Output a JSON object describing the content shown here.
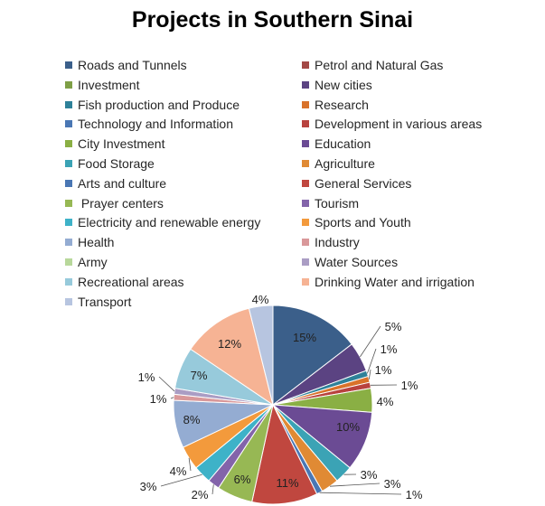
{
  "chart_data": {
    "type": "pie",
    "title": "Projects in Southern Sinai",
    "legend_placement": "top",
    "slices": [
      {
        "name": "Roads and Tunnels",
        "value": 15,
        "label": "15%",
        "color": "#3b5f8a"
      },
      {
        "name": "New cities",
        "value": 5,
        "label": "5%",
        "color": "#5b4382"
      },
      {
        "name": "Fish production and Produce",
        "value": 1,
        "label": "1%",
        "color": "#2e8199"
      },
      {
        "name": "Research",
        "value": 1,
        "label": "1%",
        "color": "#d9722a"
      },
      {
        "name": "Development in various areas",
        "value": 1,
        "label": "1%",
        "color": "#b8423e"
      },
      {
        "name": "City Investment",
        "value": 4,
        "label": "4%",
        "color": "#8aaf44"
      },
      {
        "name": "Education",
        "value": 10,
        "label": "10%",
        "color": "#6b4b94"
      },
      {
        "name": "Food Storage",
        "value": 3,
        "label": "3%",
        "color": "#3ba3b5"
      },
      {
        "name": "Agriculture",
        "value": 3,
        "label": "3%",
        "color": "#e08a34"
      },
      {
        "name": "Arts and culture",
        "value": 1,
        "label": "1%",
        "color": "#4a77b4"
      },
      {
        "name": "General Services",
        "value": 11,
        "label": "11%",
        "color": "#c0473f"
      },
      {
        "name": "Prayer centers",
        "value": 6,
        "label": "6%",
        "color": "#97b854"
      },
      {
        "name": "Tourism",
        "value": 2,
        "label": "2%",
        "color": "#8364aa"
      },
      {
        "name": "Electricity and renewable energy",
        "value": 3,
        "label": "3%",
        "color": "#3eb2c8"
      },
      {
        "name": "Sports and Youth",
        "value": 4,
        "label": "4%",
        "color": "#f39a3c"
      },
      {
        "name": "Health",
        "value": 8,
        "label": "8%",
        "color": "#94acd2"
      },
      {
        "name": "Industry",
        "value": 1,
        "label": "1%",
        "color": "#d9989a"
      },
      {
        "name": "Water Sources",
        "value": 1,
        "label": "1%",
        "color": "#aa9dc4"
      },
      {
        "name": "Recreational areas",
        "value": 7,
        "label": "7%",
        "color": "#97cadb"
      },
      {
        "name": "Drinking Water and irrigation",
        "value": 12,
        "label": "12%",
        "color": "#f6b394"
      },
      {
        "name": "Transport",
        "value": 4,
        "label": "4%",
        "color": "#b7c5e0"
      }
    ],
    "legend": [
      {
        "name": "Roads and Tunnels",
        "color": "#3b5f8a"
      },
      {
        "name": "Petrol and Natural Gas",
        "color": "#a34845"
      },
      {
        "name": "Investment",
        "color": "#7e9f46"
      },
      {
        "name": "New cities",
        "color": "#5b4382"
      },
      {
        "name": "Fish production and Produce",
        "color": "#2e8199"
      },
      {
        "name": "Research",
        "color": "#d9722a"
      },
      {
        "name": "Technology and Information",
        "color": "#4a77b4"
      },
      {
        "name": "Development in various areas",
        "color": "#b8423e"
      },
      {
        "name": "City Investment",
        "color": "#8aaf44"
      },
      {
        "name": "Education",
        "color": "#6b4b94"
      },
      {
        "name": "Food Storage",
        "color": "#3ba3b5"
      },
      {
        "name": "Agriculture",
        "color": "#e08a34"
      },
      {
        "name": "Arts and culture",
        "color": "#4a77b4"
      },
      {
        "name": "General Services",
        "color": "#c0473f"
      },
      {
        "name": " Prayer centers",
        "color": "#97b854"
      },
      {
        "name": "Tourism",
        "color": "#8364aa"
      },
      {
        "name": "Electricity and renewable energy",
        "color": "#3eb2c8"
      },
      {
        "name": "Sports and Youth",
        "color": "#f39a3c"
      },
      {
        "name": "Health",
        "color": "#94acd2"
      },
      {
        "name": "Industry",
        "color": "#d9989a"
      },
      {
        "name": "Army",
        "color": "#b8d89b"
      },
      {
        "name": "Water Sources",
        "color": "#aa9dc4"
      },
      {
        "name": "Recreational areas",
        "color": "#97cadb"
      },
      {
        "name": "Drinking Water and irrigation",
        "color": "#f6b394"
      },
      {
        "name": "Transport",
        "color": "#b7c5e0"
      }
    ]
  }
}
